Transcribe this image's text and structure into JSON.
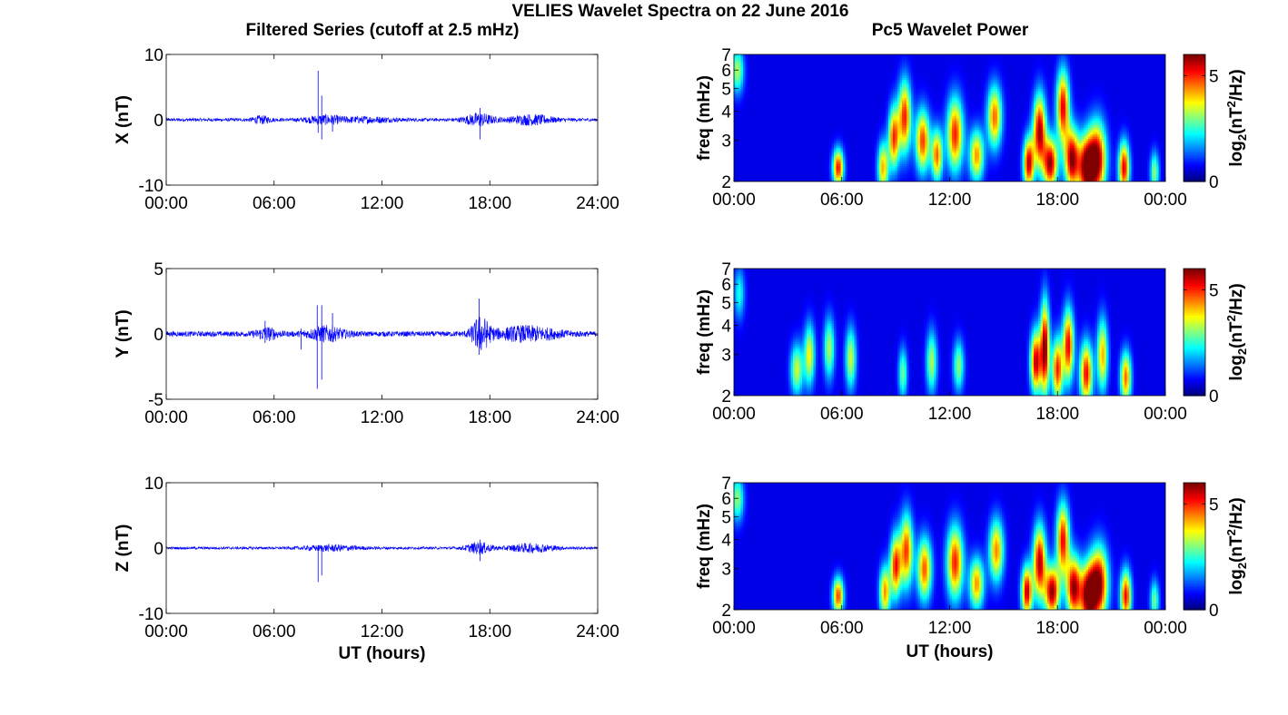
{
  "figure": {
    "title": "VELIES Wavelet Spectra on 22 June 2016",
    "left_column_title": "Filtered Series (cutoff at 2.5 mHz)",
    "right_column_title": "Pc5 Wavelet Power"
  },
  "chart_data": [
    {
      "type": "line",
      "component": "X",
      "ylabel": "X (nT)",
      "xlabel": "",
      "xlim": [
        0,
        24
      ],
      "ylim": [
        -10,
        10
      ],
      "xticks": [
        "00:00",
        "06:00",
        "12:00",
        "18:00",
        "24:00"
      ],
      "yticks": [
        "-10",
        "0",
        "10"
      ],
      "line_color": "#0000ff",
      "noise_amplitude": 0.25,
      "bursts": [
        {
          "t": 5.3,
          "amp": 0.5,
          "width": 0.5
        },
        {
          "t": 8.8,
          "amp": 0.6,
          "width": 1.0
        },
        {
          "t": 11.2,
          "amp": 0.35,
          "width": 1.5
        },
        {
          "t": 17.4,
          "amp": 0.9,
          "width": 0.8
        },
        {
          "t": 20.3,
          "amp": 0.7,
          "width": 1.2
        }
      ],
      "spikes": [
        {
          "t": 8.45,
          "min": -2.0,
          "max": 7.5
        },
        {
          "t": 8.65,
          "min": -3.0,
          "max": 3.7
        },
        {
          "t": 9.25,
          "min": -1.8,
          "max": 0.6
        },
        {
          "t": 17.45,
          "min": -3.0,
          "max": 1.8
        }
      ]
    },
    {
      "type": "line",
      "component": "Y",
      "ylabel": "Y (nT)",
      "xlabel": "",
      "xlim": [
        0,
        24
      ],
      "ylim": [
        -5,
        5
      ],
      "xticks": [
        "00:00",
        "06:00",
        "12:00",
        "18:00",
        "24:00"
      ],
      "yticks": [
        "-5",
        "0",
        "5"
      ],
      "line_color": "#0000ff",
      "noise_amplitude": 0.2,
      "bursts": [
        {
          "t": 5.6,
          "amp": 0.4,
          "width": 0.6
        },
        {
          "t": 8.9,
          "amp": 0.5,
          "width": 1.0
        },
        {
          "t": 17.5,
          "amp": 1.2,
          "width": 0.5
        },
        {
          "t": 20.0,
          "amp": 0.5,
          "width": 1.8
        }
      ],
      "spikes": [
        {
          "t": 5.5,
          "min": -0.7,
          "max": 1.0
        },
        {
          "t": 7.5,
          "min": -1.2,
          "max": 0.4
        },
        {
          "t": 8.4,
          "min": -4.2,
          "max": 2.2
        },
        {
          "t": 8.65,
          "min": -3.5,
          "max": 2.2
        },
        {
          "t": 9.25,
          "min": -0.6,
          "max": 1.6
        },
        {
          "t": 17.4,
          "min": -1.6,
          "max": 2.7
        }
      ]
    },
    {
      "type": "line",
      "component": "Z",
      "ylabel": "Z (nT)",
      "xlabel": "UT (hours)",
      "xlim": [
        0,
        24
      ],
      "ylim": [
        -10,
        10
      ],
      "xticks": [
        "00:00",
        "06:00",
        "12:00",
        "18:00",
        "24:00"
      ],
      "yticks": [
        "-10",
        "0",
        "10"
      ],
      "line_color": "#0000ff",
      "noise_amplitude": 0.2,
      "bursts": [
        {
          "t": 9.2,
          "amp": 0.4,
          "width": 1.5
        },
        {
          "t": 17.4,
          "amp": 0.8,
          "width": 0.7
        },
        {
          "t": 20.3,
          "amp": 0.6,
          "width": 1.3
        }
      ],
      "spikes": [
        {
          "t": 8.45,
          "min": -5.2,
          "max": 0.3
        },
        {
          "t": 8.65,
          "min": -4.2,
          "max": 0.3
        },
        {
          "t": 17.45,
          "min": -2.0,
          "max": 1.3
        }
      ]
    },
    {
      "type": "heatmap",
      "component": "X",
      "ylabel": "freq (mHz)",
      "xlabel": "",
      "xlim": [
        0,
        24
      ],
      "ylim": [
        2,
        7
      ],
      "yscale": "log",
      "xticks": [
        "00:00",
        "06:00",
        "12:00",
        "18:00",
        "00:00"
      ],
      "yticks": [
        "2",
        "3",
        "4",
        "5",
        "6",
        "7"
      ],
      "colorbar_label": "log2(nT^2/Hz)",
      "colorbar_ticks": [
        "0",
        "5"
      ],
      "clim": [
        0,
        6
      ],
      "colormap": "jet",
      "blobs": [
        {
          "t": 0.2,
          "f": 6.0,
          "p": 3.0,
          "tw": 0.35,
          "fw": 0.22
        },
        {
          "t": 5.8,
          "f": 2.3,
          "p": 5.2,
          "tw": 0.3,
          "fw": 0.18
        },
        {
          "t": 8.3,
          "f": 2.3,
          "p": 4.0,
          "tw": 0.3,
          "fw": 0.25
        },
        {
          "t": 8.9,
          "f": 3.1,
          "p": 4.8,
          "tw": 0.3,
          "fw": 0.3
        },
        {
          "t": 9.5,
          "f": 3.8,
          "p": 5.0,
          "tw": 0.35,
          "fw": 0.35
        },
        {
          "t": 10.5,
          "f": 3.0,
          "p": 4.8,
          "tw": 0.4,
          "fw": 0.3
        },
        {
          "t": 11.3,
          "f": 2.6,
          "p": 4.5,
          "tw": 0.3,
          "fw": 0.25
        },
        {
          "t": 12.3,
          "f": 3.2,
          "p": 5.0,
          "tw": 0.45,
          "fw": 0.35
        },
        {
          "t": 13.5,
          "f": 2.6,
          "p": 4.2,
          "tw": 0.4,
          "fw": 0.25
        },
        {
          "t": 14.5,
          "f": 3.8,
          "p": 4.5,
          "tw": 0.4,
          "fw": 0.3
        },
        {
          "t": 16.4,
          "f": 2.4,
          "p": 5.6,
          "tw": 0.3,
          "fw": 0.25
        },
        {
          "t": 17.0,
          "f": 3.3,
          "p": 5.8,
          "tw": 0.35,
          "fw": 0.35
        },
        {
          "t": 17.6,
          "f": 2.4,
          "p": 5.8,
          "tw": 0.4,
          "fw": 0.25
        },
        {
          "t": 18.3,
          "f": 4.2,
          "p": 5.3,
          "tw": 0.35,
          "fw": 0.35
        },
        {
          "t": 18.8,
          "f": 2.5,
          "p": 5.9,
          "tw": 0.4,
          "fw": 0.3
        },
        {
          "t": 19.6,
          "f": 2.3,
          "p": 5.9,
          "tw": 0.45,
          "fw": 0.3
        },
        {
          "t": 20.2,
          "f": 2.5,
          "p": 6.0,
          "tw": 0.5,
          "fw": 0.35
        },
        {
          "t": 21.7,
          "f": 2.3,
          "p": 5.4,
          "tw": 0.3,
          "fw": 0.25
        },
        {
          "t": 23.4,
          "f": 2.2,
          "p": 2.8,
          "tw": 0.25,
          "fw": 0.2
        }
      ]
    },
    {
      "type": "heatmap",
      "component": "Y",
      "ylabel": "freq (mHz)",
      "xlabel": "",
      "xlim": [
        0,
        24
      ],
      "ylim": [
        2,
        7
      ],
      "yscale": "log",
      "xticks": [
        "00:00",
        "06:00",
        "12:00",
        "18:00",
        "00:00"
      ],
      "yticks": [
        "2",
        "3",
        "4",
        "5",
        "6",
        "7"
      ],
      "colorbar_label": "log2(nT^2/Hz)",
      "colorbar_ticks": [
        "0",
        "5"
      ],
      "clim": [
        0,
        6
      ],
      "colormap": "jet",
      "blobs": [
        {
          "t": 0.3,
          "f": 5.5,
          "p": 2.0,
          "tw": 0.3,
          "fw": 0.25
        },
        {
          "t": 3.5,
          "f": 2.6,
          "p": 3.2,
          "tw": 0.35,
          "fw": 0.25
        },
        {
          "t": 4.2,
          "f": 3.0,
          "p": 3.5,
          "tw": 0.3,
          "fw": 0.3
        },
        {
          "t": 5.3,
          "f": 3.2,
          "p": 3.0,
          "tw": 0.3,
          "fw": 0.3
        },
        {
          "t": 6.5,
          "f": 2.9,
          "p": 3.2,
          "tw": 0.3,
          "fw": 0.3
        },
        {
          "t": 9.4,
          "f": 2.5,
          "p": 2.6,
          "tw": 0.25,
          "fw": 0.25
        },
        {
          "t": 11.0,
          "f": 2.8,
          "p": 3.0,
          "tw": 0.3,
          "fw": 0.3
        },
        {
          "t": 12.5,
          "f": 2.7,
          "p": 2.8,
          "tw": 0.3,
          "fw": 0.25
        },
        {
          "t": 16.8,
          "f": 2.8,
          "p": 5.6,
          "tw": 0.3,
          "fw": 0.3
        },
        {
          "t": 17.3,
          "f": 3.2,
          "p": 6.0,
          "tw": 0.25,
          "fw": 0.45
        },
        {
          "t": 18.0,
          "f": 2.6,
          "p": 5.0,
          "tw": 0.3,
          "fw": 0.3
        },
        {
          "t": 18.6,
          "f": 3.3,
          "p": 5.3,
          "tw": 0.3,
          "fw": 0.35
        },
        {
          "t": 19.6,
          "f": 2.5,
          "p": 5.2,
          "tw": 0.35,
          "fw": 0.3
        },
        {
          "t": 20.5,
          "f": 3.0,
          "p": 4.0,
          "tw": 0.3,
          "fw": 0.35
        },
        {
          "t": 21.8,
          "f": 2.4,
          "p": 4.5,
          "tw": 0.3,
          "fw": 0.25
        }
      ]
    },
    {
      "type": "heatmap",
      "component": "Z",
      "ylabel": "freq (mHz)",
      "xlabel": "UT (hours)",
      "xlim": [
        0,
        24
      ],
      "ylim": [
        2,
        7
      ],
      "yscale": "log",
      "xticks": [
        "00:00",
        "06:00",
        "12:00",
        "18:00",
        "00:00"
      ],
      "yticks": [
        "2",
        "3",
        "4",
        "5",
        "6",
        "7"
      ],
      "colorbar_label": "log2(nT^2/Hz)",
      "colorbar_ticks": [
        "0",
        "5"
      ],
      "clim": [
        0,
        6
      ],
      "colormap": "jet",
      "blobs": [
        {
          "t": 0.2,
          "f": 6.0,
          "p": 2.8,
          "tw": 0.35,
          "fw": 0.22
        },
        {
          "t": 5.8,
          "f": 2.3,
          "p": 4.8,
          "tw": 0.3,
          "fw": 0.18
        },
        {
          "t": 8.4,
          "f": 2.4,
          "p": 4.2,
          "tw": 0.3,
          "fw": 0.25
        },
        {
          "t": 9.0,
          "f": 3.1,
          "p": 5.0,
          "tw": 0.3,
          "fw": 0.3
        },
        {
          "t": 9.6,
          "f": 3.6,
          "p": 4.8,
          "tw": 0.35,
          "fw": 0.35
        },
        {
          "t": 10.6,
          "f": 3.0,
          "p": 4.6,
          "tw": 0.4,
          "fw": 0.3
        },
        {
          "t": 12.3,
          "f": 3.2,
          "p": 5.0,
          "tw": 0.45,
          "fw": 0.35
        },
        {
          "t": 13.5,
          "f": 2.6,
          "p": 4.2,
          "tw": 0.4,
          "fw": 0.25
        },
        {
          "t": 14.6,
          "f": 3.6,
          "p": 4.3,
          "tw": 0.4,
          "fw": 0.3
        },
        {
          "t": 16.3,
          "f": 2.4,
          "p": 5.6,
          "tw": 0.3,
          "fw": 0.25
        },
        {
          "t": 17.0,
          "f": 3.2,
          "p": 5.7,
          "tw": 0.35,
          "fw": 0.35
        },
        {
          "t": 17.7,
          "f": 2.4,
          "p": 5.9,
          "tw": 0.4,
          "fw": 0.25
        },
        {
          "t": 18.3,
          "f": 4.0,
          "p": 5.2,
          "tw": 0.35,
          "fw": 0.35
        },
        {
          "t": 18.9,
          "f": 2.5,
          "p": 5.8,
          "tw": 0.4,
          "fw": 0.3
        },
        {
          "t": 19.7,
          "f": 2.3,
          "p": 6.0,
          "tw": 0.45,
          "fw": 0.3
        },
        {
          "t": 20.3,
          "f": 2.6,
          "p": 5.9,
          "tw": 0.5,
          "fw": 0.35
        },
        {
          "t": 21.8,
          "f": 2.3,
          "p": 5.2,
          "tw": 0.3,
          "fw": 0.25
        },
        {
          "t": 23.4,
          "f": 2.2,
          "p": 2.6,
          "tw": 0.25,
          "fw": 0.2
        }
      ]
    }
  ]
}
